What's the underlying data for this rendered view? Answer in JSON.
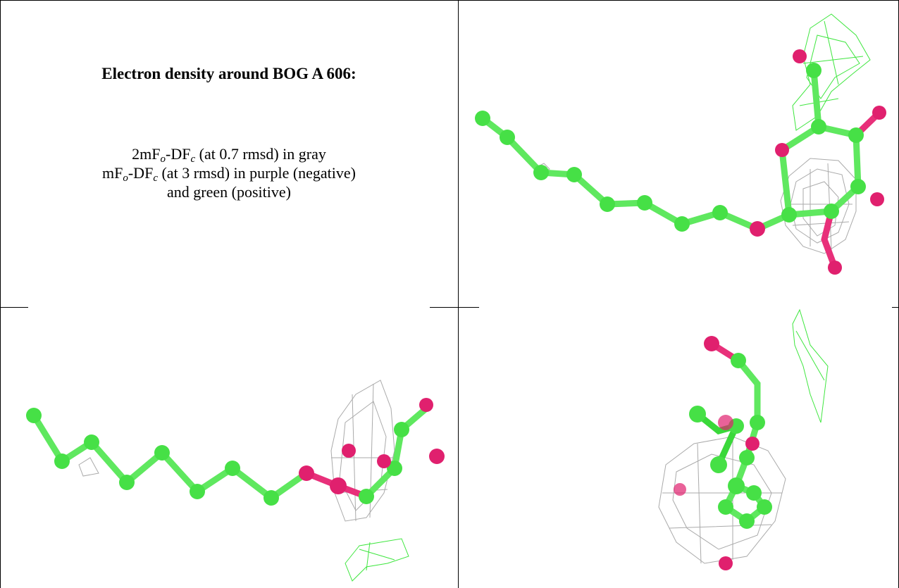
{
  "caption": {
    "title": "Electron density around BOG A 606:",
    "lines": [
      {
        "parts": [
          "2mF",
          "o",
          "-DF",
          "c",
          " (at 0.7 rmsd) in gray"
        ]
      },
      {
        "parts": [
          "mF",
          "o",
          "-DF",
          "c",
          " (at 3 rmsd) in purple (negative)"
        ]
      },
      {
        "parts": [
          "and green (positive)"
        ]
      }
    ]
  }
}
